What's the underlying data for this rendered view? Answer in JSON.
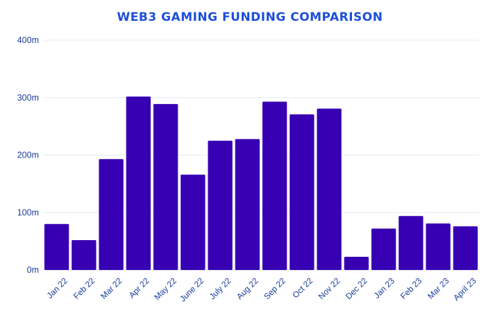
{
  "colors": {
    "title": "#1d4fd8",
    "bar": "#3700b3",
    "axis_text": "#1a3d9e",
    "grid": "#e4e9f2",
    "baseline": "#c9d2e3"
  },
  "chart_data": {
    "type": "bar",
    "title": "WEB3 GAMING FUNDING COMPARISON",
    "xlabel": "",
    "ylabel": "",
    "ylim": [
      0,
      400
    ],
    "grid": true,
    "legend": "none",
    "y_ticks": [
      {
        "value": 0,
        "label": "0m"
      },
      {
        "value": 100,
        "label": "100m"
      },
      {
        "value": 200,
        "label": "200m"
      },
      {
        "value": 300,
        "label": "300m"
      },
      {
        "value": 400,
        "label": "400m"
      }
    ],
    "categories": [
      "Jan 22",
      "Feb 22",
      "Mar 22",
      "Apr 22",
      "May 22",
      "June 22",
      "July 22",
      "Aug 22",
      "Sep 22",
      "Oct 22",
      "Nov 22",
      "Dec 22",
      "Jan 23",
      "Feb 23",
      "Mar 23",
      "April 23"
    ],
    "values": [
      80,
      52,
      193,
      302,
      289,
      166,
      225,
      228,
      293,
      271,
      281,
      23,
      72,
      94,
      81,
      76
    ]
  }
}
